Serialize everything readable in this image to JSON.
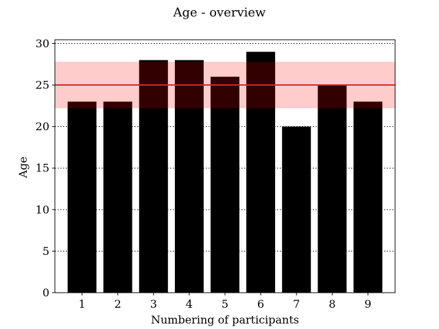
{
  "chart_data": {
    "type": "bar",
    "title": "Age - overview",
    "xlabel": "Numbering of participants",
    "ylabel": "Age",
    "categories": [
      "1",
      "2",
      "3",
      "4",
      "5",
      "6",
      "7",
      "8",
      "9"
    ],
    "values": [
      23,
      23,
      28,
      28,
      26,
      29,
      20,
      25,
      23
    ],
    "ylim": [
      0,
      30
    ],
    "yticks": [
      "0",
      "5",
      "10",
      "15",
      "20",
      "25",
      "30"
    ],
    "grid": "horizontal-dotted",
    "mean_line": 25,
    "band": [
      22.2,
      27.8
    ],
    "colors": {
      "bars": "#000000",
      "mean_line": "#d62728",
      "band": "#ff0000"
    }
  }
}
